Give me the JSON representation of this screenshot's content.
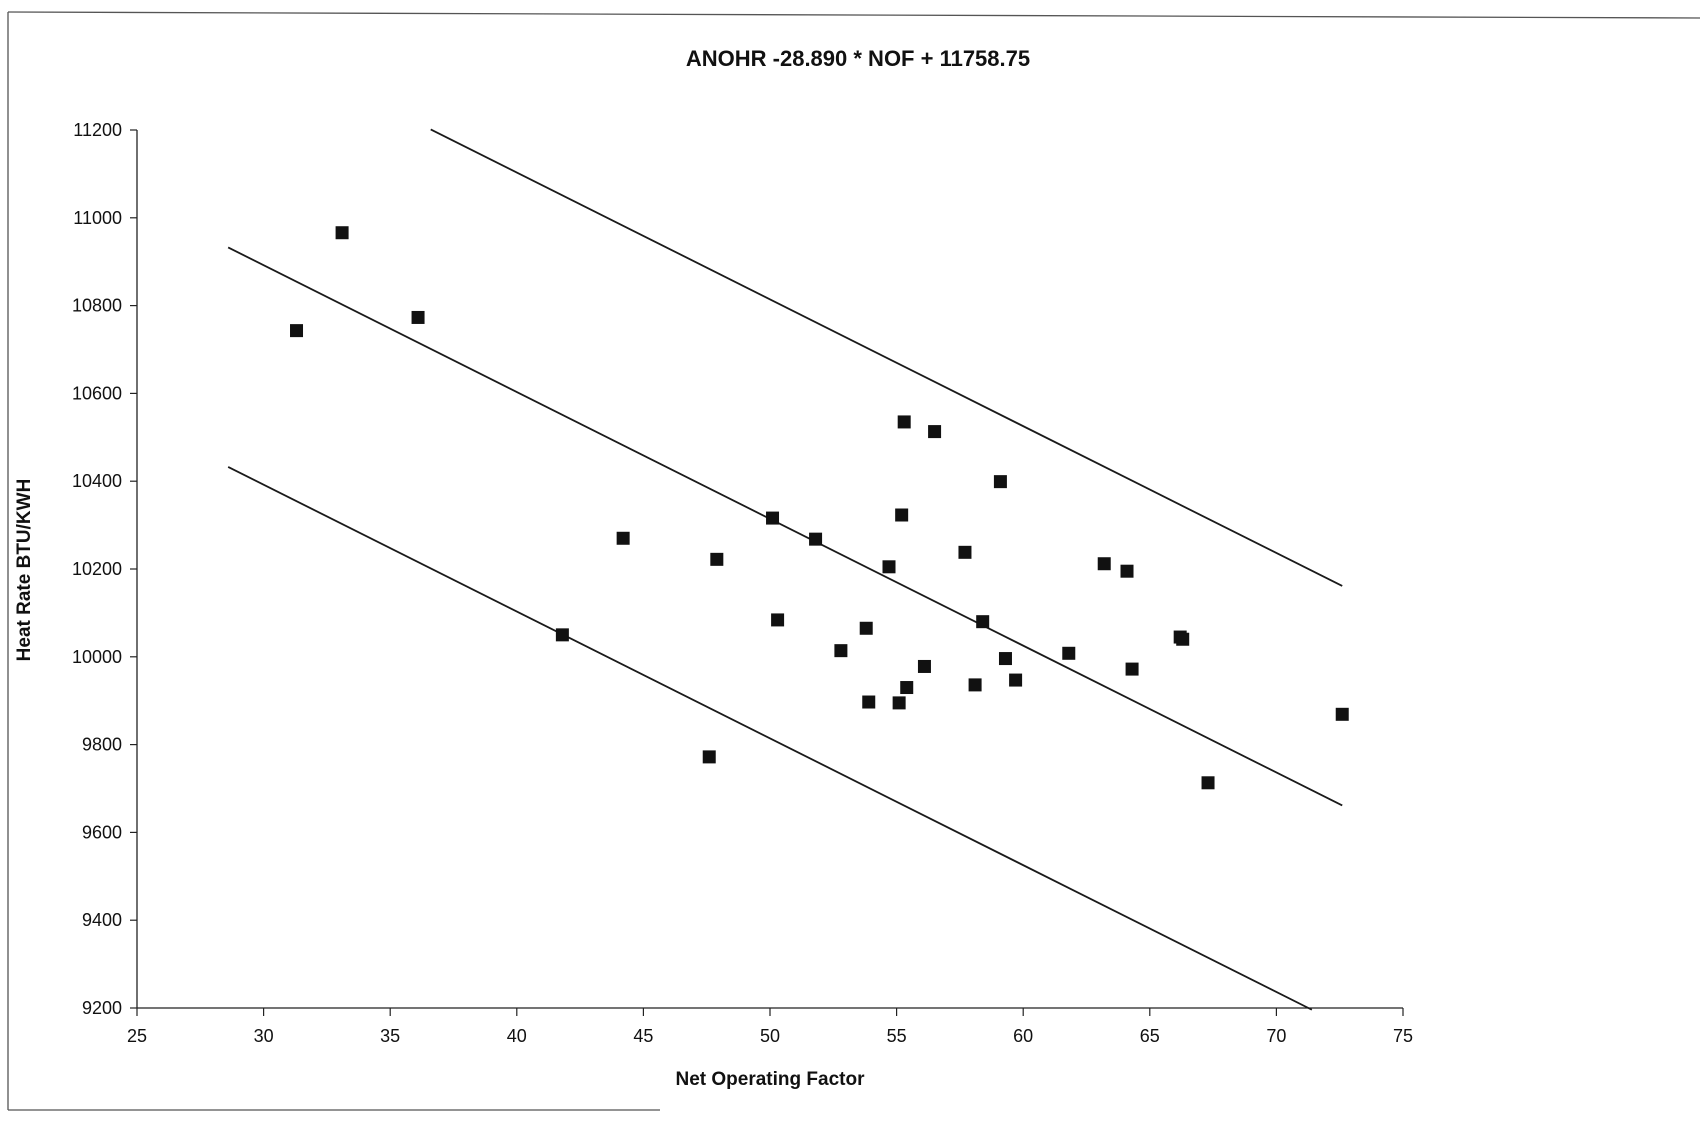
{
  "chart_data": {
    "type": "scatter",
    "title": "ANOHR -28.890 * NOF + 11758.75",
    "xlabel": "Net Operating Factor",
    "ylabel": "Heat Rate BTU/KWH",
    "xlim": [
      25,
      75
    ],
    "ylim": [
      9200,
      11200
    ],
    "x_ticks": [
      25,
      30,
      35,
      40,
      45,
      50,
      55,
      60,
      65,
      70,
      75
    ],
    "y_ticks": [
      9200,
      9400,
      9600,
      9800,
      10000,
      10200,
      10400,
      10600,
      10800,
      11000,
      11200
    ],
    "points": [
      {
        "x": 31.3,
        "y": 10743
      },
      {
        "x": 33.1,
        "y": 10966
      },
      {
        "x": 36.1,
        "y": 10773
      },
      {
        "x": 41.8,
        "y": 10050
      },
      {
        "x": 44.2,
        "y": 10270
      },
      {
        "x": 47.6,
        "y": 9772
      },
      {
        "x": 47.9,
        "y": 10222
      },
      {
        "x": 50.1,
        "y": 10316
      },
      {
        "x": 50.3,
        "y": 10084
      },
      {
        "x": 51.8,
        "y": 10268
      },
      {
        "x": 52.8,
        "y": 10014
      },
      {
        "x": 53.8,
        "y": 10065
      },
      {
        "x": 53.9,
        "y": 9897
      },
      {
        "x": 54.7,
        "y": 10205
      },
      {
        "x": 55.1,
        "y": 9895
      },
      {
        "x": 55.2,
        "y": 10323
      },
      {
        "x": 55.3,
        "y": 10535
      },
      {
        "x": 55.4,
        "y": 9930
      },
      {
        "x": 56.1,
        "y": 9978
      },
      {
        "x": 56.5,
        "y": 10513
      },
      {
        "x": 57.7,
        "y": 10238
      },
      {
        "x": 58.1,
        "y": 9936
      },
      {
        "x": 58.4,
        "y": 10080
      },
      {
        "x": 59.1,
        "y": 10399
      },
      {
        "x": 59.3,
        "y": 9996
      },
      {
        "x": 59.7,
        "y": 9947
      },
      {
        "x": 61.8,
        "y": 10008
      },
      {
        "x": 63.2,
        "y": 10212
      },
      {
        "x": 64.1,
        "y": 10195
      },
      {
        "x": 64.3,
        "y": 9972
      },
      {
        "x": 66.2,
        "y": 10045
      },
      {
        "x": 66.3,
        "y": 10040
      },
      {
        "x": 67.3,
        "y": 9713
      },
      {
        "x": 72.6,
        "y": 9869
      }
    ],
    "lines": [
      {
        "slope": -28.89,
        "intercept": 11758.75,
        "x_start": 28.6,
        "x_end": 72.6
      },
      {
        "slope": -28.89,
        "intercept": 12258.75,
        "x_start": 36.6,
        "x_end": 72.6
      },
      {
        "slope": -28.89,
        "intercept": 11258.75,
        "x_start": 28.6,
        "x_end": 71.4
      }
    ],
    "grid": false,
    "legend": "none"
  }
}
